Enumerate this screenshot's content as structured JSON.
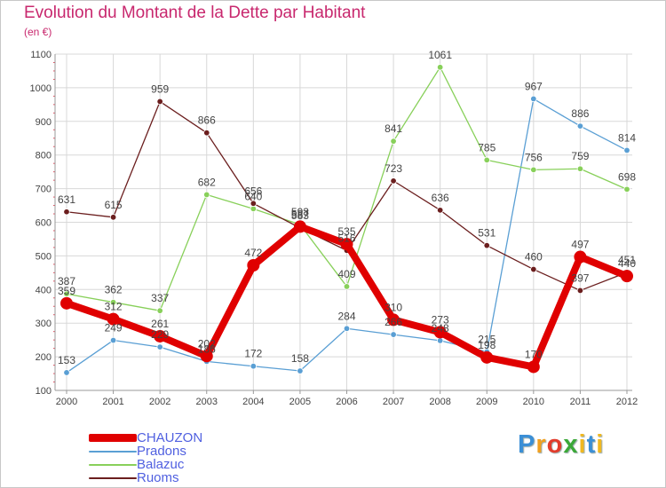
{
  "title": "Evolution du Montant de la Dette par Habitant",
  "subtitle": "(en €)",
  "brand": "Proxiti",
  "chart_data": {
    "type": "line",
    "x": [
      "2000",
      "2001",
      "2002",
      "2003",
      "2004",
      "2005",
      "2006",
      "2007",
      "2008",
      "2009",
      "2010",
      "2011",
      "2012"
    ],
    "ylim": [
      100,
      1100
    ],
    "yticks": [
      100,
      200,
      300,
      400,
      500,
      600,
      700,
      800,
      900,
      1000,
      1100
    ],
    "grid": true,
    "legend_position": "bottom-left",
    "series": [
      {
        "name": "CHAUZON",
        "color": "#e00000",
        "values": [
          359,
          312,
          261,
          202,
          472,
          587,
          535,
          310,
          273,
          198,
          170,
          497,
          440
        ]
      },
      {
        "name": "Pradons",
        "color": "#5a9fd4",
        "values": [
          153,
          249,
          229,
          186,
          172,
          158,
          284,
          266,
          248,
          215,
          967,
          886,
          814
        ]
      },
      {
        "name": "Balazuc",
        "color": "#88d05a",
        "values": [
          387,
          362,
          337,
          682,
          640,
          593,
          409,
          841,
          1061,
          785,
          756,
          759,
          698
        ]
      },
      {
        "name": "Ruoms",
        "color": "#6b1e1e",
        "values": [
          631,
          615,
          959,
          866,
          656,
          583,
          516,
          723,
          636,
          531,
          460,
          397,
          451
        ]
      }
    ]
  }
}
